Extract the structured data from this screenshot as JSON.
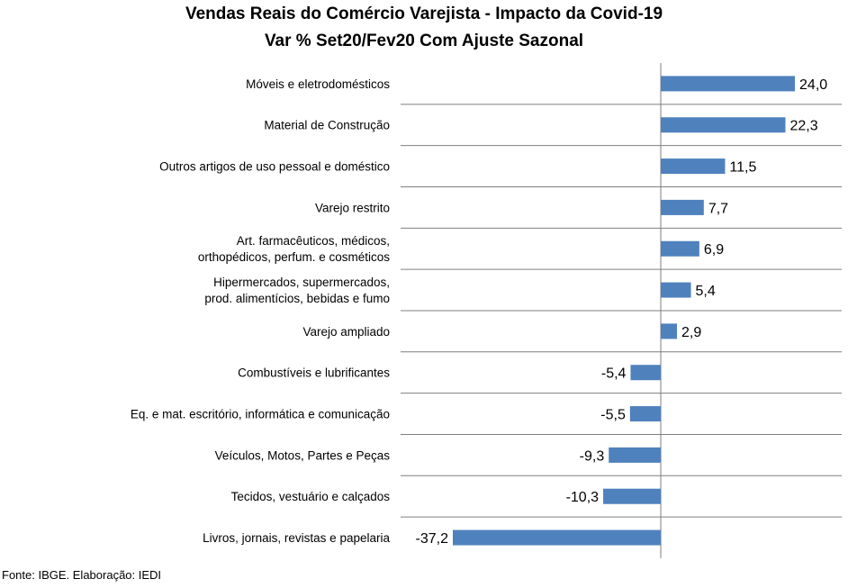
{
  "chart_data": {
    "type": "bar",
    "orientation": "horizontal",
    "title": "Vendas Reais do Comércio Varejista - Impacto da Covid-19",
    "subtitle": "Var % Set20/Fev20 Com Ajuste Sazonal",
    "categories": [
      "Móveis e eletrodomésticos",
      "Material de Construção",
      "Outros artigos de uso pessoal e doméstico",
      "Varejo restrito",
      "Art. farmacêuticos, médicos,\northopédicos, perfum. e cosméticos",
      "Hipermercados, supermercados,\nprod. alimentícios, bebidas e fumo",
      "Varejo ampliado",
      "Combustíveis e lubrificantes",
      "Eq. e mat. escritório, informática e comunicação",
      "Veículos, Motos, Partes e Peças",
      "Tecidos, vestuário e calçados",
      "Livros, jornais, revistas e papelaria"
    ],
    "values": [
      24.0,
      22.3,
      11.5,
      7.7,
      6.9,
      5.4,
      2.9,
      -5.4,
      -5.5,
      -9.3,
      -10.3,
      -37.2
    ],
    "value_labels": [
      "24,0",
      "22,3",
      "11,5",
      "7,7",
      "6,9",
      "5,4",
      "2,9",
      "-5,4",
      "-5,5",
      "-9,3",
      "-10,3",
      "-37,2"
    ],
    "bar_color": "#4F81BD",
    "grid": "horizontal separators",
    "legend": "none"
  },
  "source": "Fonte: IBGE. Elaboração: IEDI"
}
